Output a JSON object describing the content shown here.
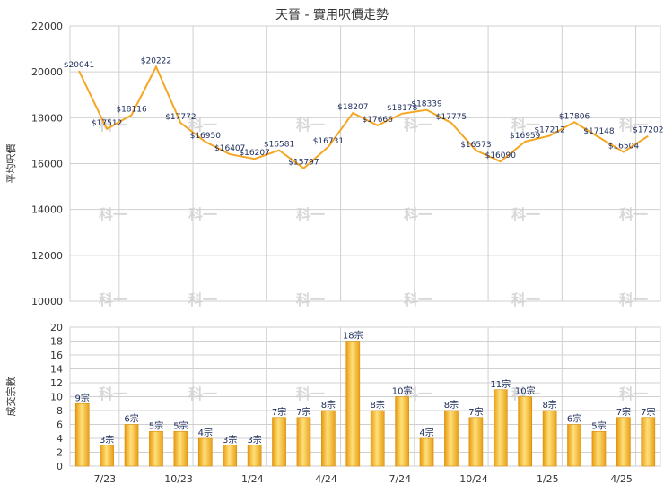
{
  "chart_title": "天晉 - 實用呎價走勢",
  "chart_data": [
    {
      "type": "line",
      "ylabel": "平均呎價",
      "ylim": [
        10000,
        22000
      ],
      "yticks": [
        "10000",
        "12000",
        "14000",
        "16000",
        "18000",
        "20000",
        "22000"
      ],
      "series": [
        {
          "values": [
            20041,
            17512,
            18116,
            20222,
            17772,
            16950,
            16407,
            16207,
            16581,
            15797,
            16731,
            18207,
            17666,
            18178,
            18339,
            17775,
            16573,
            16090,
            16959,
            17212,
            17806,
            17148,
            16504,
            17202
          ],
          "labels": [
            "$20041",
            "$17512",
            "$18116",
            "$20222",
            "$17772",
            "$16950",
            "$16407",
            "$16207",
            "$16581",
            "$15797",
            "$16731",
            "$18207",
            "$17666",
            "$18178",
            "$18339",
            "$17775",
            "$16573",
            "$16090",
            "$16959",
            "$17212",
            "$17806",
            "$17148",
            "$16504",
            "$17202"
          ],
          "color": "#f5a623"
        }
      ],
      "grid": true
    },
    {
      "type": "bar",
      "ylabel": "成交宗數",
      "ylim": [
        0,
        20
      ],
      "yticks": [
        "0",
        "2",
        "4",
        "6",
        "8",
        "10",
        "12",
        "14",
        "16",
        "18",
        "20"
      ],
      "values": [
        9,
        3,
        6,
        5,
        5,
        4,
        3,
        3,
        7,
        7,
        8,
        18,
        8,
        10,
        4,
        8,
        7,
        11,
        10,
        8,
        6,
        5,
        7,
        7
      ],
      "labels": [
        "9宗",
        "3宗",
        "6宗",
        "5宗",
        "5宗",
        "4宗",
        "3宗",
        "3宗",
        "7宗",
        "7宗",
        "8宗",
        "18宗",
        "8宗",
        "10宗",
        "4宗",
        "8宗",
        "7宗",
        "11宗",
        "10宗",
        "8宗",
        "6宗",
        "5宗",
        "7宗",
        "7宗"
      ],
      "x_tick_labels": [
        {
          "label": "7/23",
          "index": 2.5
        },
        {
          "label": "10/23",
          "index": 5.5
        },
        {
          "label": "1/24",
          "index": 8.5
        },
        {
          "label": "4/24",
          "index": 11.5
        },
        {
          "label": "7/24",
          "index": 14.5
        },
        {
          "label": "10/24",
          "index": 17.5
        },
        {
          "label": "1/25",
          "index": 20.5
        },
        {
          "label": "4/25",
          "index": 23.5
        }
      ],
      "color": "#f5b52a",
      "grid": true
    }
  ],
  "watermark": "科一",
  "colors": {
    "grid": "#d0d0d0",
    "line": "#f5a623",
    "bar_light": "#ffe07a",
    "bar_dark": "#e89a10"
  }
}
